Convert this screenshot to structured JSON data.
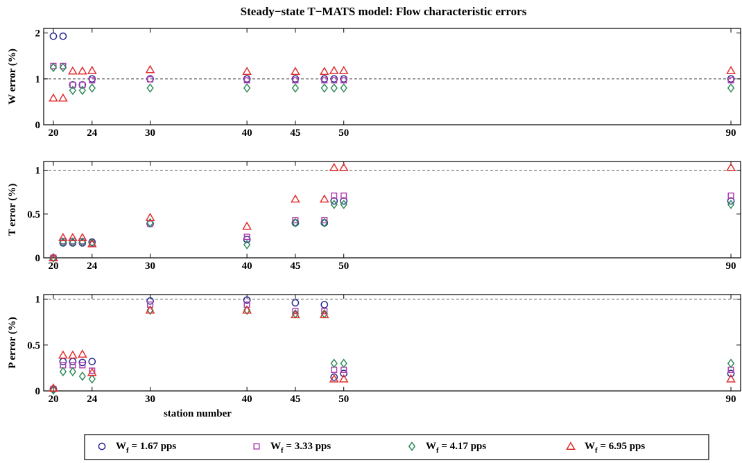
{
  "chart_data": {
    "type": "scatter",
    "title": "Steady−state T−MATS model: Flow characteristic errors",
    "xlabel": "station number",
    "x_ticks": [
      20,
      24,
      30,
      40,
      45,
      50,
      90
    ],
    "xlim": [
      19,
      91
    ],
    "reference_line": 1,
    "legend": {
      "placement": "bottom",
      "entries": [
        {
          "prefix": "W",
          "subscript": "f",
          "suffix": " = 1.67 pps"
        },
        {
          "prefix": "W",
          "subscript": "f",
          "suffix": " = 3.33 pps"
        },
        {
          "prefix": "W",
          "subscript": "f",
          "suffix": " = 4.17 pps"
        },
        {
          "prefix": "W",
          "subscript": "f",
          "suffix": " = 6.95 pps"
        }
      ]
    },
    "series_styles": [
      {
        "marker": "circle",
        "color": "#2b2b8f"
      },
      {
        "marker": "square",
        "color": "#b13fb1"
      },
      {
        "marker": "diamond",
        "color": "#2e8b57"
      },
      {
        "marker": "triangle",
        "color": "#e03030"
      }
    ],
    "x": [
      20,
      21,
      22,
      23,
      24,
      30,
      40,
      45,
      48,
      49,
      50,
      90
    ],
    "panels": [
      {
        "ylabel": "W error (%)",
        "ylim": [
          0,
          2.1
        ],
        "y_ticks": [
          0,
          1,
          2
        ],
        "y_tick_labels": [
          "0",
          "1",
          "2"
        ],
        "series": [
          {
            "values": [
              1.93,
              1.93,
              0.87,
              0.87,
              1.0,
              1.0,
              1.0,
              1.0,
              1.0,
              1.0,
              1.0,
              1.0
            ]
          },
          {
            "values": [
              1.28,
              1.28,
              0.87,
              0.87,
              0.97,
              0.99,
              0.97,
              0.97,
              0.97,
              0.97,
              0.97,
              0.97
            ]
          },
          {
            "values": [
              1.25,
              1.25,
              0.75,
              0.75,
              0.8,
              0.8,
              0.8,
              0.8,
              0.8,
              0.8,
              0.8,
              0.8
            ]
          },
          {
            "values": [
              0.58,
              0.58,
              1.17,
              1.17,
              1.18,
              1.2,
              1.16,
              1.16,
              1.16,
              1.18,
              1.18,
              1.18
            ]
          }
        ]
      },
      {
        "ylabel": "T error (%)",
        "ylim": [
          0,
          1.1
        ],
        "y_ticks": [
          0,
          0.5,
          1
        ],
        "y_tick_labels": [
          "0",
          "0.5",
          "1"
        ],
        "series": [
          {
            "values": [
              0.0,
              0.17,
              0.17,
              0.17,
              0.18,
              0.39,
              0.21,
              0.4,
              0.4,
              0.65,
              0.65,
              0.65
            ]
          },
          {
            "values": [
              0.0,
              0.19,
              0.19,
              0.19,
              0.16,
              0.39,
              0.24,
              0.43,
              0.43,
              0.71,
              0.71,
              0.71
            ]
          },
          {
            "values": [
              0.0,
              0.18,
              0.18,
              0.18,
              0.17,
              0.4,
              0.15,
              0.4,
              0.4,
              0.61,
              0.61,
              0.61
            ]
          },
          {
            "values": [
              0.0,
              0.23,
              0.23,
              0.23,
              0.16,
              0.46,
              0.36,
              0.67,
              0.67,
              1.03,
              1.03,
              1.03
            ]
          }
        ]
      },
      {
        "ylabel": "P error (%)",
        "ylim": [
          0,
          1.05
        ],
        "y_ticks": [
          0,
          0.5,
          1
        ],
        "y_tick_labels": [
          "0",
          "0.5",
          "1"
        ],
        "series": [
          {
            "values": [
              0.02,
              0.32,
              0.32,
              0.31,
              0.32,
              0.98,
              0.99,
              0.96,
              0.94,
              0.15,
              0.19,
              0.19
            ]
          },
          {
            "values": [
              0.02,
              0.28,
              0.28,
              0.28,
              0.22,
              0.94,
              0.94,
              0.87,
              0.87,
              0.23,
              0.23,
              0.23
            ]
          },
          {
            "values": [
              0.01,
              0.21,
              0.21,
              0.16,
              0.13,
              0.88,
              0.88,
              0.84,
              0.84,
              0.3,
              0.3,
              0.3
            ]
          },
          {
            "values": [
              0.03,
              0.39,
              0.39,
              0.4,
              0.2,
              0.88,
              0.88,
              0.83,
              0.83,
              0.13,
              0.13,
              0.13
            ]
          }
        ]
      }
    ]
  }
}
